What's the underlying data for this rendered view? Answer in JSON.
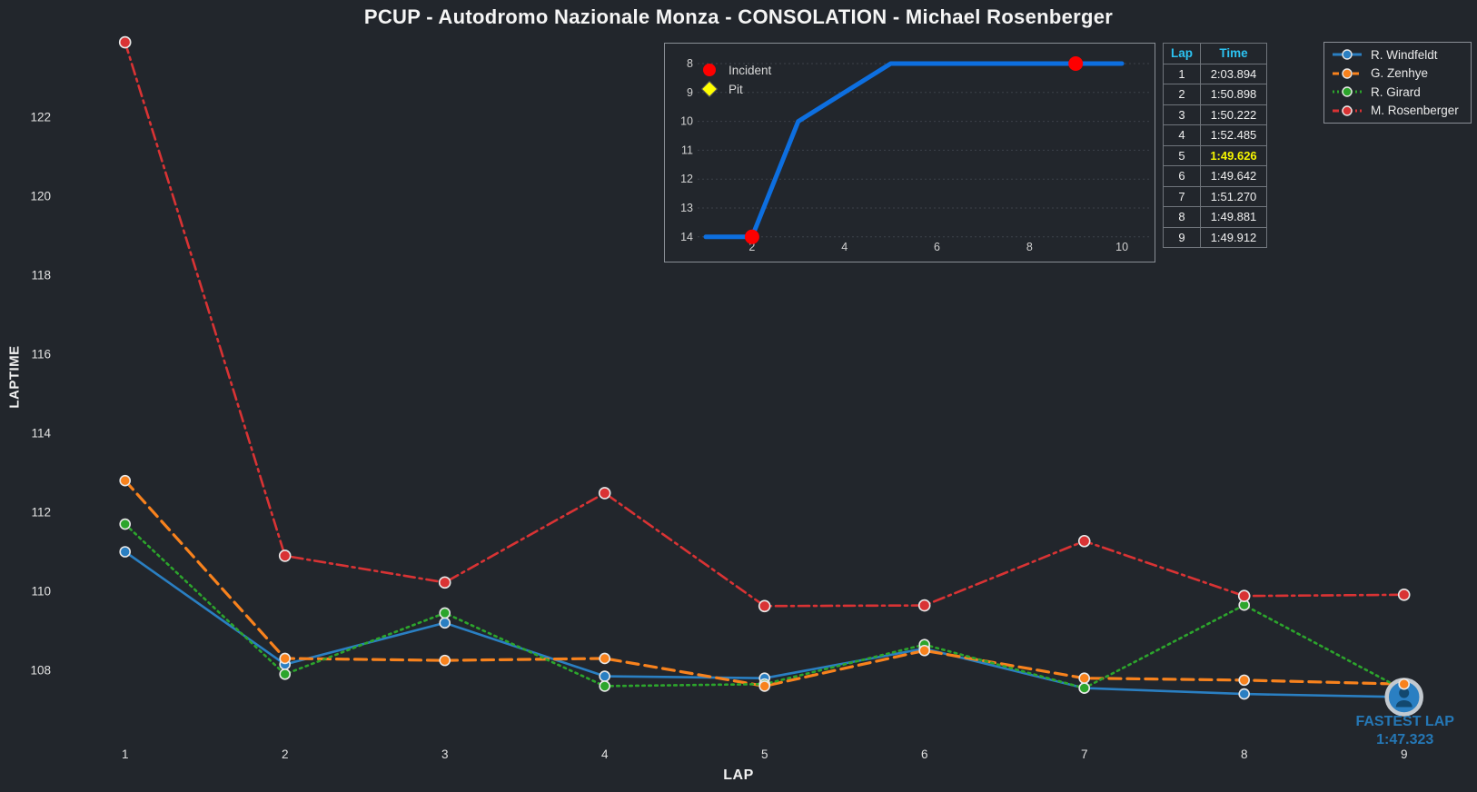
{
  "title": "PCUP - Autodromo Nazionale Monza - CONSOLATION - Michael Rosenberger",
  "colors": {
    "background": "#22262c",
    "text": "#f2f2f2",
    "tick_text": "#e0e0e0",
    "grid": "#3d424a",
    "border": "#8a8f96",
    "table_header": "#2cc3f2",
    "fastest_highlight": "#f5f500",
    "annotation_blue": "#2577b5",
    "incident_red": "#fe0000",
    "pit_yellow": "#ffff00",
    "inset_line_blue": "#0d6fe0",
    "marker_edge": "#e8e8e8"
  },
  "axes": {
    "x_label": "LAP",
    "y_label": "LAPTIME"
  },
  "chart_data": [
    {
      "id": "laptimes",
      "type": "line",
      "xlabel": "LAP",
      "ylabel": "LAPTIME",
      "x": [
        1,
        2,
        3,
        4,
        5,
        6,
        7,
        8,
        9
      ],
      "x_ticks": [
        "1",
        "2",
        "3",
        "4",
        "5",
        "6",
        "7",
        "8",
        "9"
      ],
      "y_ticks": [
        122,
        120,
        118,
        116,
        114,
        112,
        110,
        108
      ],
      "ylim": [
        106.5,
        124.3
      ],
      "grid": false,
      "legend_position": "top-right",
      "series": [
        {
          "name": "R. Windfeldt",
          "color": "#2a7fc2",
          "style": "solid",
          "values": [
            111.0,
            108.15,
            109.2,
            107.85,
            107.8,
            108.55,
            107.55,
            107.4,
            107.323
          ]
        },
        {
          "name": "G. Zenhye",
          "color": "#f8821d",
          "style": "dashed",
          "values": [
            112.8,
            108.3,
            108.25,
            108.3,
            107.6,
            108.5,
            107.8,
            107.75,
            107.65
          ]
        },
        {
          "name": "R. Girard",
          "color": "#2ca52c",
          "style": "dotted",
          "values": [
            111.7,
            107.9,
            109.45,
            107.6,
            107.65,
            108.65,
            107.55,
            109.65,
            107.5
          ]
        },
        {
          "name": "M. Rosenberger",
          "color": "#d93334",
          "style": "dashdot",
          "values": [
            123.894,
            110.898,
            110.222,
            112.485,
            109.626,
            109.642,
            111.27,
            109.881,
            109.912
          ]
        }
      ],
      "annotation": {
        "label": "FASTEST LAP",
        "value": "1:47.323",
        "lap": 9,
        "series": "R. Windfeldt"
      }
    },
    {
      "id": "position-inset",
      "type": "line",
      "x": [
        1,
        2,
        3,
        4,
        5,
        6,
        7,
        8,
        9,
        10
      ],
      "values": [
        14,
        14,
        10,
        9,
        8,
        8,
        8,
        8,
        8,
        8
      ],
      "x_ticks": [
        "2",
        "4",
        "6",
        "8",
        "10"
      ],
      "y_ticks": [
        "8",
        "9",
        "10",
        "11",
        "12",
        "13",
        "14"
      ],
      "y_inverted": true,
      "grid": "horizontal-dashed",
      "legend": [
        {
          "label": "Incident",
          "marker": "circle",
          "color": "#fe0000"
        },
        {
          "label": "Pit",
          "marker": "diamond",
          "color": "#ffff00"
        }
      ],
      "incidents": [
        {
          "x": 2,
          "y": 14
        },
        {
          "x": 9,
          "y": 8
        }
      ],
      "pits": []
    }
  ],
  "lap_table": {
    "headers": [
      "Lap",
      "Time"
    ],
    "rows": [
      [
        "1",
        "2:03.894"
      ],
      [
        "2",
        "1:50.898"
      ],
      [
        "3",
        "1:50.222"
      ],
      [
        "4",
        "1:52.485"
      ],
      [
        "5",
        "1:49.626"
      ],
      [
        "6",
        "1:49.642"
      ],
      [
        "7",
        "1:51.270"
      ],
      [
        "8",
        "1:49.881"
      ],
      [
        "9",
        "1:49.912"
      ]
    ],
    "highlight_lap": "5"
  }
}
